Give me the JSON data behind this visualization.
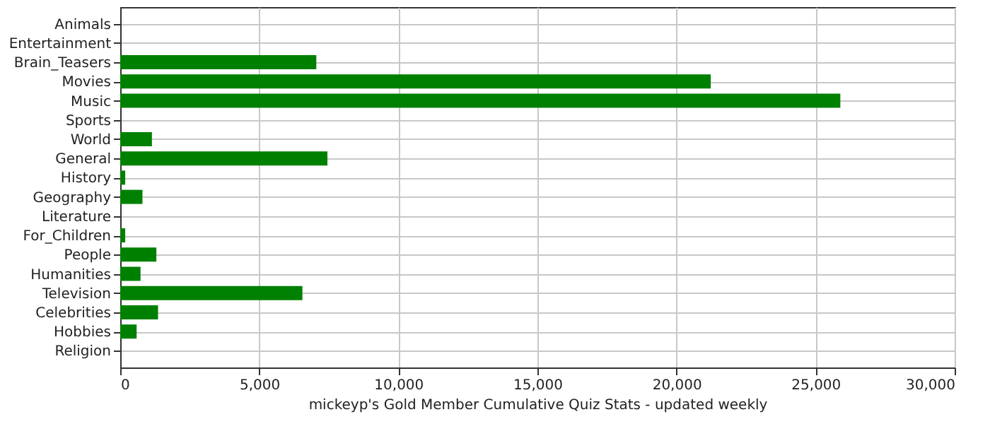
{
  "chart_data": {
    "type": "bar",
    "orientation": "horizontal",
    "xlabel": "mickeyp's Gold Member Cumulative Quiz Stats - updated weekly",
    "categories": [
      "Animals",
      "Entertainment",
      "Brain_Teasers",
      "Movies",
      "Music",
      "Sports",
      "World",
      "General",
      "History",
      "Geography",
      "Literature",
      "For_Children",
      "People",
      "Humanities",
      "Television",
      "Celebrities",
      "Hobbies",
      "Religion"
    ],
    "values": [
      0,
      0,
      7050,
      21230,
      25890,
      0,
      1140,
      7450,
      180,
      800,
      0,
      180,
      1300,
      730,
      6550,
      1360,
      590,
      0
    ],
    "color": "#008000",
    "xlim": [
      0,
      30000
    ],
    "xticks": [
      0,
      {
        "value": 5000,
        "label": "5,000"
      },
      {
        "value": 10000,
        "label": "10,000"
      },
      {
        "value": 15000,
        "label": "15,000"
      },
      {
        "value": 20000,
        "label": "20,000"
      },
      {
        "value": 25000,
        "label": "25,000"
      },
      {
        "value": 30000,
        "label": "30,000"
      }
    ],
    "grid": true
  }
}
